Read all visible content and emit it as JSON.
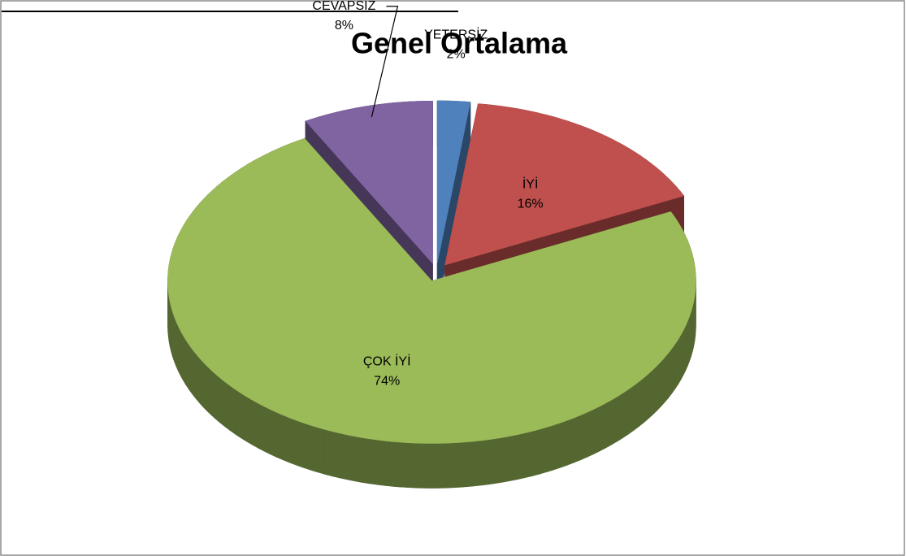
{
  "chart_data": {
    "type": "pie3d",
    "title": "Genel Ortalama",
    "categories": [
      "YETERSİZ",
      "İYİ",
      "ÇOK İYİ",
      "CEVAPSIZ"
    ],
    "values": [
      2,
      16,
      74,
      8
    ],
    "value_labels": [
      "2%",
      "16%",
      "74%",
      "8%"
    ],
    "colors": [
      "#4f81bd",
      "#c0504d",
      "#9bbb59",
      "#8064a2"
    ]
  }
}
